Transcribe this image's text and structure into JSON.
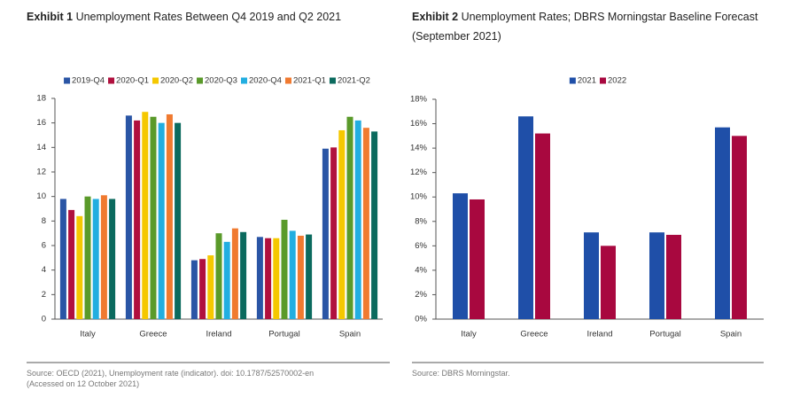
{
  "chart_data": [
    {
      "type": "bar",
      "exhibit": "Exhibit 1",
      "title": "Unemployment Rates Between Q4 2019 and Q2 2021",
      "categories": [
        "Italy",
        "Greece",
        "Ireland",
        "Portugal",
        "Spain"
      ],
      "series": [
        {
          "name": "2019-Q4",
          "color": "#2a55a5",
          "values": [
            9.8,
            16.6,
            4.8,
            6.7,
            13.9
          ]
        },
        {
          "name": "2020-Q1",
          "color": "#b0103e",
          "values": [
            8.9,
            16.2,
            4.9,
            6.6,
            14.0
          ]
        },
        {
          "name": "2020-Q2",
          "color": "#f5c800",
          "values": [
            8.4,
            16.9,
            5.2,
            6.6,
            15.4
          ]
        },
        {
          "name": "2020-Q3",
          "color": "#5a9a2a",
          "values": [
            10.0,
            16.5,
            7.0,
            8.1,
            16.5
          ]
        },
        {
          "name": "2020-Q4",
          "color": "#22aee0",
          "values": [
            9.8,
            16.0,
            6.3,
            7.2,
            16.2
          ]
        },
        {
          "name": "2021-Q1",
          "color": "#f07a30",
          "values": [
            10.1,
            16.7,
            7.4,
            6.8,
            15.6
          ]
        },
        {
          "name": "2021-Q2",
          "color": "#0b6a5e",
          "values": [
            9.8,
            16.0,
            7.1,
            6.9,
            15.3
          ]
        }
      ],
      "ylim": [
        0,
        18
      ],
      "yticks": [
        0,
        2,
        4,
        6,
        8,
        10,
        12,
        14,
        16,
        18
      ],
      "source": "Source: OECD (2021), Unemployment rate (indicator). doi: 10.1787/52570002-en (Accessed on 12 October 2021)"
    },
    {
      "type": "bar",
      "exhibit": "Exhibit 2",
      "title": "Unemployment Rates; DBRS Morningstar Baseline Forecast (September 2021)",
      "categories": [
        "Italy",
        "Greece",
        "Ireland",
        "Portugal",
        "Spain"
      ],
      "series": [
        {
          "name": "2021",
          "color": "#1f4fa8",
          "values": [
            10.3,
            16.6,
            7.1,
            7.1,
            15.7
          ]
        },
        {
          "name": "2022",
          "color": "#a8083f",
          "values": [
            9.8,
            15.2,
            6.0,
            6.9,
            15.0
          ]
        }
      ],
      "ylim": [
        0,
        18
      ],
      "yticks": [
        {
          "value": 0,
          "label": "0%"
        },
        {
          "value": 2,
          "label": "2%"
        },
        {
          "value": 4,
          "label": "4%"
        },
        {
          "value": 6,
          "label": "6%"
        },
        {
          "value": 8,
          "label": "8%"
        },
        {
          "value": 10,
          "label": "10%"
        },
        {
          "value": 12,
          "label": "12%"
        },
        {
          "value": 14,
          "label": "14%"
        },
        {
          "value": 16,
          "label": "16%"
        },
        {
          "value": 18,
          "label": "18%"
        }
      ],
      "source": "Source: DBRS Morningstar."
    }
  ]
}
